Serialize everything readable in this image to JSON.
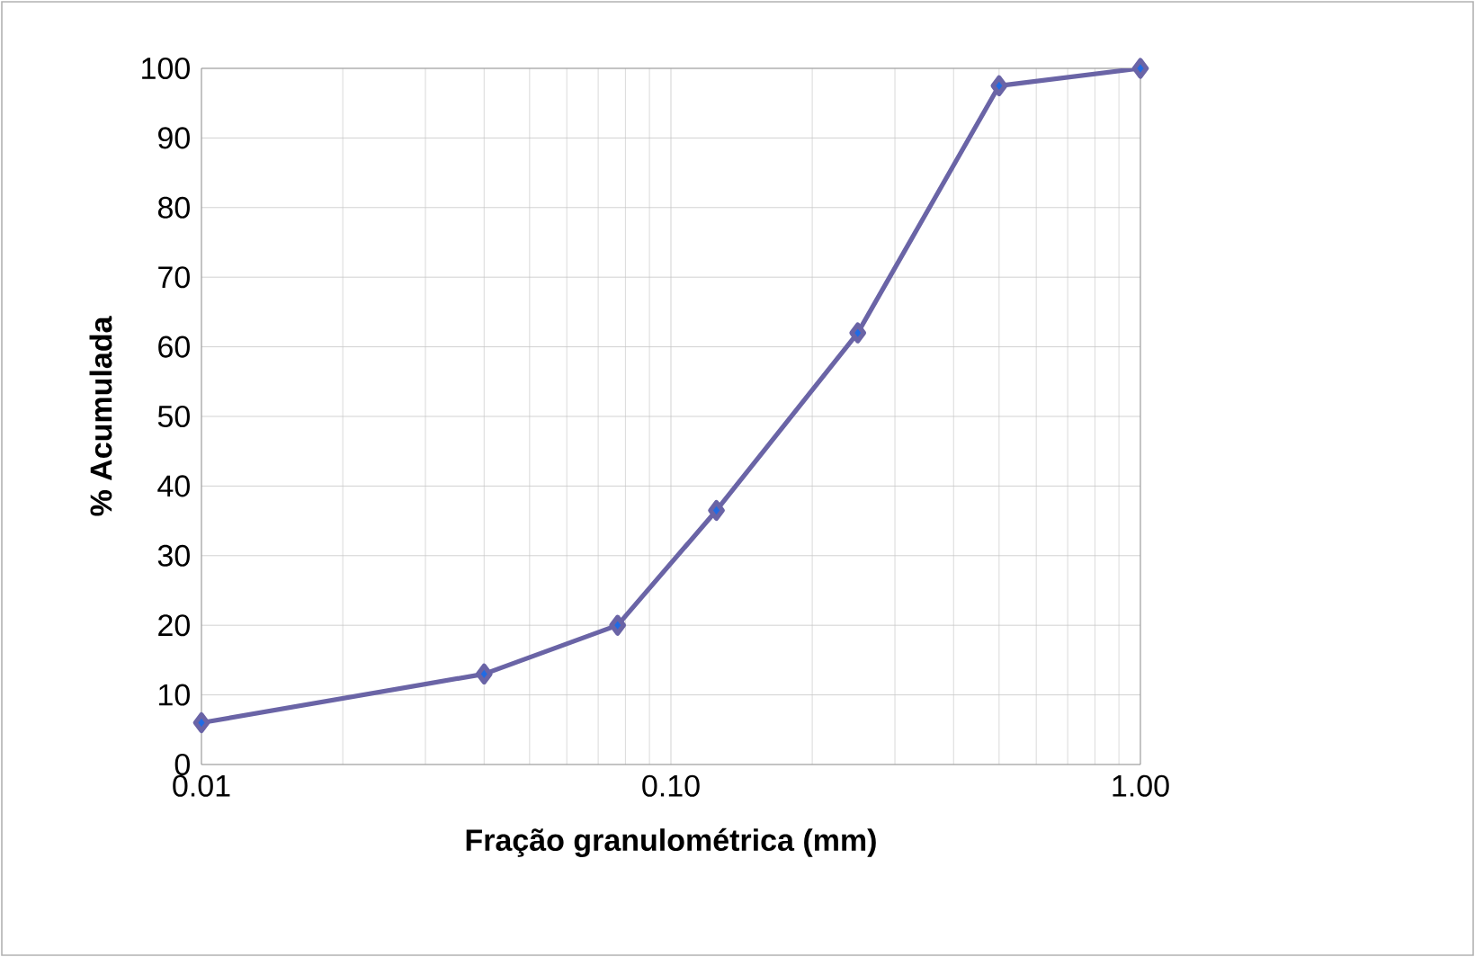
{
  "chart_data": {
    "type": "line",
    "xlabel": "Fração granulométrica (mm)",
    "ylabel": "% Acumulada",
    "log": "x",
    "grid": true,
    "marker": "diamond",
    "line_style": "solid",
    "x": [
      0.01,
      0.04,
      0.077,
      0.125,
      0.25,
      0.5,
      1.0
    ],
    "series": [
      {
        "color": "#6a64a6",
        "values": [
          6,
          13,
          20,
          36.5,
          62,
          97.5,
          100
        ]
      }
    ],
    "xlim": [
      0.01,
      1
    ],
    "xticks": [
      {
        "value": 0.01,
        "label": "0.01"
      },
      {
        "value": 0.1,
        "label": "0.10"
      },
      {
        "value": 1,
        "label": "1.00"
      }
    ],
    "ylim": [
      0,
      100
    ],
    "yticks": [
      0,
      10,
      20,
      30,
      40,
      50,
      60,
      70,
      80,
      90,
      100
    ]
  }
}
